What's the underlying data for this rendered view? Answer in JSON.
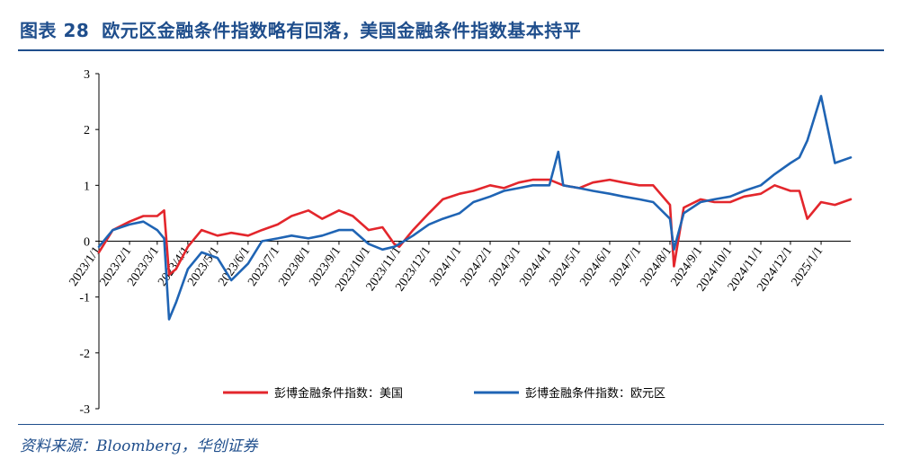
{
  "header": {
    "figure_label": "图表 28",
    "title": "欧元区金融条件指数略有回落，美国金融条件指数基本持平"
  },
  "footer": {
    "source": "资料来源：Bloomberg，华创证券"
  },
  "colors": {
    "us": "#e3262c",
    "eu": "#1f64b4",
    "accent": "#1f4e8c"
  },
  "chart_data": {
    "type": "line",
    "ylim": [
      -3,
      3
    ],
    "yticks": [
      "3",
      "2",
      "1",
      "0",
      "-1",
      "-2",
      "-3"
    ],
    "x_start": "2023/1/1",
    "x_end": "2025/1/31",
    "xticks": [
      "2023/1/1",
      "2023/2/1",
      "2023/3/1",
      "2023/4/1",
      "2023/5/1",
      "2023/6/1",
      "2023/7/1",
      "2023/8/1",
      "2023/9/1",
      "2023/10/1",
      "2023/11/1",
      "2023/12/1",
      "2024/1/1",
      "2024/2/1",
      "2024/3/1",
      "2024/4/1",
      "2024/5/1",
      "2024/6/1",
      "2024/7/1",
      "2024/8/1",
      "2024/9/1",
      "2024/10/1",
      "2024/11/1",
      "2024/12/1",
      "2025/1/1"
    ],
    "legend_position": "bottom",
    "series": [
      {
        "name": "彭博金融条件指数：美国",
        "color": "#e3262c",
        "x": [
          "2023/1/1",
          "2023/1/15",
          "2023/2/1",
          "2023/2/15",
          "2023/3/1",
          "2023/3/8",
          "2023/3/13",
          "2023/3/20",
          "2023/4/1",
          "2023/4/15",
          "2023/5/1",
          "2023/5/15",
          "2023/6/1",
          "2023/6/15",
          "2023/7/1",
          "2023/7/15",
          "2023/8/1",
          "2023/8/15",
          "2023/9/1",
          "2023/9/15",
          "2023/10/1",
          "2023/10/15",
          "2023/10/27",
          "2023/11/1",
          "2023/11/15",
          "2023/12/1",
          "2023/12/15",
          "2024/1/1",
          "2024/1/15",
          "2024/2/1",
          "2024/2/15",
          "2024/3/1",
          "2024/3/15",
          "2024/4/1",
          "2024/4/15",
          "2024/5/1",
          "2024/5/15",
          "2024/6/1",
          "2024/6/15",
          "2024/7/1",
          "2024/7/15",
          "2024/8/1",
          "2024/8/5",
          "2024/8/15",
          "2024/9/1",
          "2024/9/15",
          "2024/10/1",
          "2024/10/15",
          "2024/11/1",
          "2024/11/15",
          "2024/12/1",
          "2024/12/10",
          "2024/12/18",
          "2025/1/1",
          "2025/1/15",
          "2025/1/31"
        ],
        "values": [
          -0.2,
          0.2,
          0.35,
          0.45,
          0.45,
          0.55,
          -0.6,
          -0.5,
          -0.1,
          0.2,
          0.1,
          0.15,
          0.1,
          0.2,
          0.3,
          0.45,
          0.55,
          0.4,
          0.55,
          0.45,
          0.2,
          0.25,
          -0.05,
          -0.1,
          0.2,
          0.5,
          0.75,
          0.85,
          0.9,
          1.0,
          0.95,
          1.05,
          1.1,
          1.1,
          1.0,
          0.95,
          1.05,
          1.1,
          1.05,
          1.0,
          1.0,
          0.65,
          -0.45,
          0.6,
          0.75,
          0.7,
          0.7,
          0.8,
          0.85,
          1.0,
          0.9,
          0.9,
          0.4,
          0.7,
          0.65,
          0.75
        ]
      },
      {
        "name": "彭博金融条件指数：欧元区",
        "color": "#1f64b4",
        "x": [
          "2023/1/1",
          "2023/1/15",
          "2023/2/1",
          "2023/2/15",
          "2023/3/1",
          "2023/3/8",
          "2023/3/13",
          "2023/3/20",
          "2023/4/1",
          "2023/4/15",
          "2023/5/1",
          "2023/5/15",
          "2023/6/1",
          "2023/6/15",
          "2023/7/1",
          "2023/7/15",
          "2023/8/1",
          "2023/8/15",
          "2023/9/1",
          "2023/9/15",
          "2023/10/1",
          "2023/10/15",
          "2023/10/27",
          "2023/11/1",
          "2023/11/15",
          "2023/12/1",
          "2023/12/15",
          "2024/1/1",
          "2024/1/15",
          "2024/2/1",
          "2024/2/15",
          "2024/3/1",
          "2024/3/15",
          "2024/4/1",
          "2024/4/10",
          "2024/4/15",
          "2024/5/1",
          "2024/5/15",
          "2024/6/1",
          "2024/6/15",
          "2024/7/1",
          "2024/7/15",
          "2024/8/1",
          "2024/8/5",
          "2024/8/15",
          "2024/9/1",
          "2024/9/15",
          "2024/10/1",
          "2024/10/15",
          "2024/11/1",
          "2024/11/15",
          "2024/12/1",
          "2024/12/10",
          "2024/12/18",
          "2025/1/1",
          "2025/1/15",
          "2025/1/31"
        ],
        "values": [
          -0.1,
          0.2,
          0.3,
          0.35,
          0.2,
          0.05,
          -1.4,
          -1.1,
          -0.5,
          -0.2,
          -0.3,
          -0.7,
          -0.4,
          0.0,
          0.05,
          0.1,
          0.05,
          0.1,
          0.2,
          0.2,
          -0.05,
          -0.15,
          -0.1,
          -0.05,
          0.1,
          0.3,
          0.4,
          0.5,
          0.7,
          0.8,
          0.9,
          0.95,
          1.0,
          1.0,
          1.6,
          1.0,
          0.95,
          0.9,
          0.85,
          0.8,
          0.75,
          0.7,
          0.4,
          -0.15,
          0.5,
          0.7,
          0.75,
          0.8,
          0.9,
          1.0,
          1.2,
          1.4,
          1.5,
          1.8,
          2.6,
          1.4,
          1.5
        ]
      }
    ]
  }
}
